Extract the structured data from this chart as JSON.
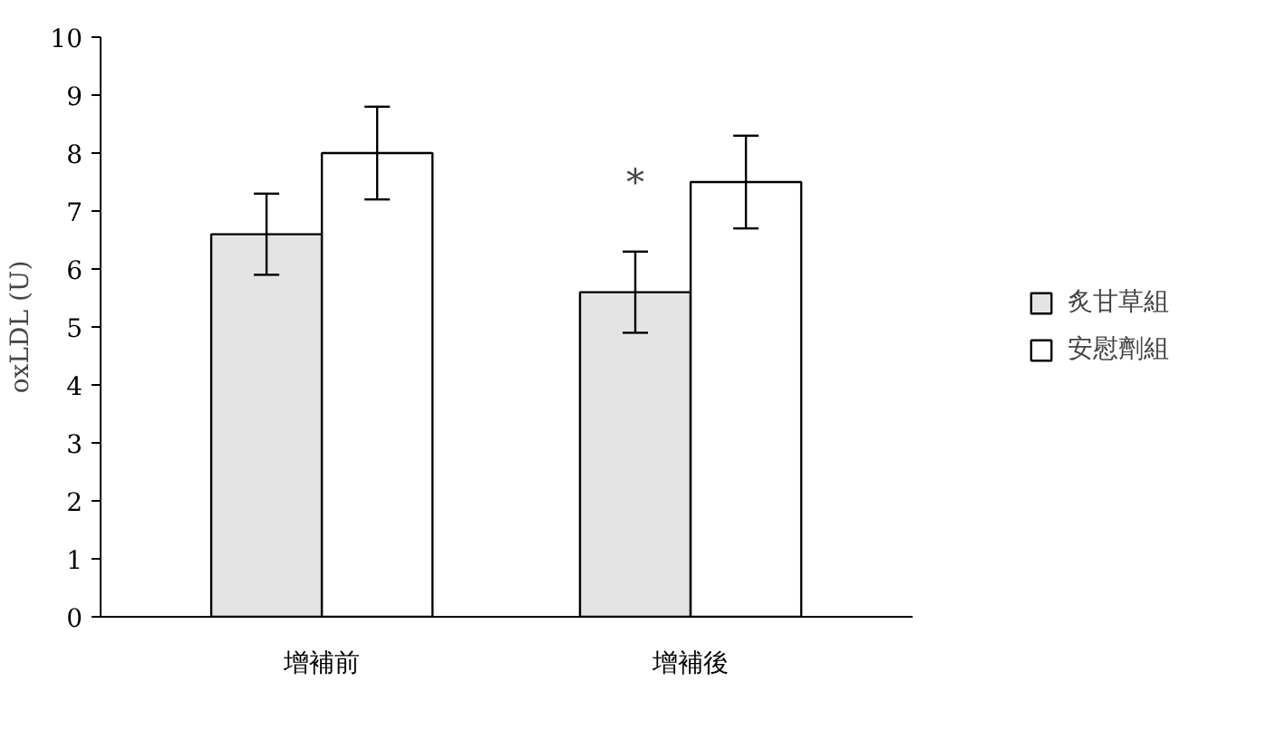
{
  "chart_data": {
    "type": "bar",
    "ylabel": "oxLDL (U)",
    "categories": [
      "增補前",
      "增補後"
    ],
    "series": [
      {
        "name": "炙甘草組",
        "color": "#e4e4e4",
        "values": [
          6.6,
          5.6
        ],
        "errors": [
          0.7,
          0.7
        ]
      },
      {
        "name": "安慰劑組",
        "color": "#ffffff",
        "values": [
          8.0,
          7.5
        ],
        "errors": [
          0.8,
          0.8
        ]
      }
    ],
    "ylim": [
      0,
      10
    ],
    "yticks": [
      0,
      1,
      2,
      3,
      4,
      5,
      6,
      7,
      8,
      9,
      10
    ],
    "annotations": [
      {
        "text": "*",
        "x": "增補後",
        "y": 7.5
      }
    ],
    "grid": false,
    "legend": "right"
  }
}
